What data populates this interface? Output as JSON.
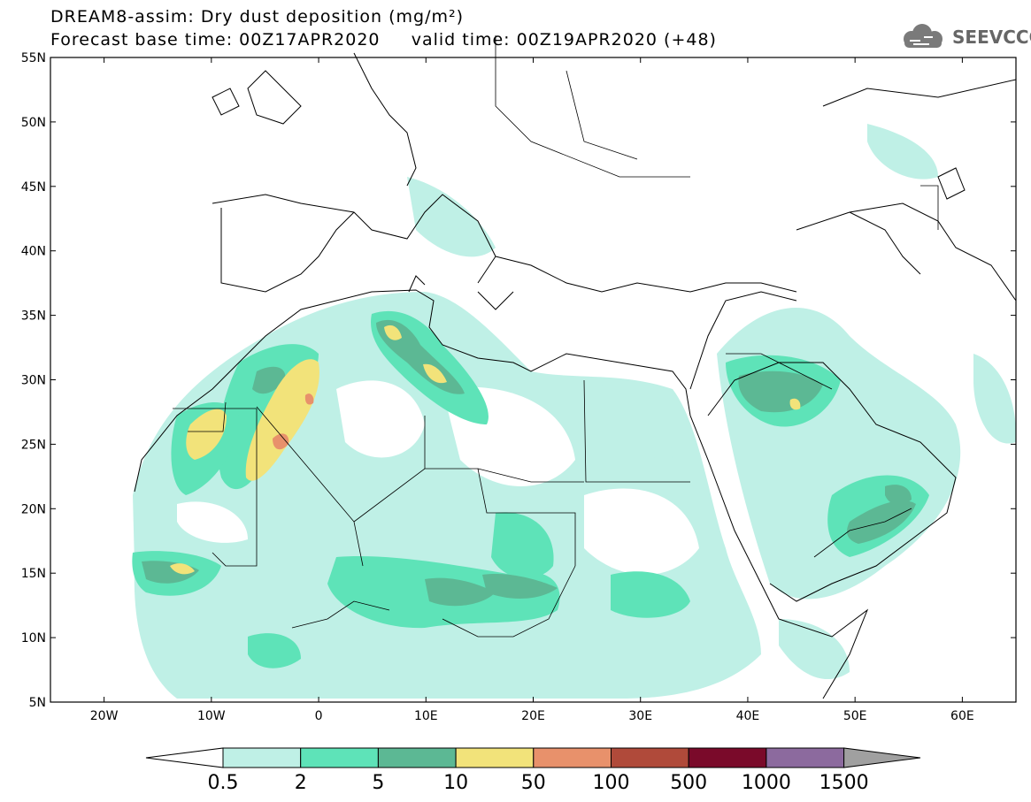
{
  "header": {
    "title_line1": "DREAM8-assim: Dry dust deposition (mg/m²)",
    "title_line2": "Forecast base time: 00Z17APR2020     valid time: 00Z19APR2020 (+48)",
    "logo_text": "SEEVCCC"
  },
  "map": {
    "lon_range": [
      -25,
      65
    ],
    "lat_range": [
      5,
      55
    ],
    "lat_labels": [
      "5N",
      "10N",
      "15N",
      "20N",
      "25N",
      "30N",
      "35N",
      "40N",
      "45N",
      "50N",
      "55N"
    ],
    "lon_labels": [
      "20W",
      "10W",
      "0",
      "10E",
      "20E",
      "30E",
      "40E",
      "50E",
      "60E"
    ]
  },
  "legend": {
    "labels": [
      "0.5",
      "2",
      "5",
      "10",
      "50",
      "100",
      "500",
      "1000",
      "1500"
    ],
    "colors": [
      "#bff0e6",
      "#5ee3b8",
      "#5cb894",
      "#f2e37a",
      "#e8916b",
      "#b04a3a",
      "#7a0a2a",
      "#8c6a9e",
      "#a0a0a0"
    ]
  }
}
